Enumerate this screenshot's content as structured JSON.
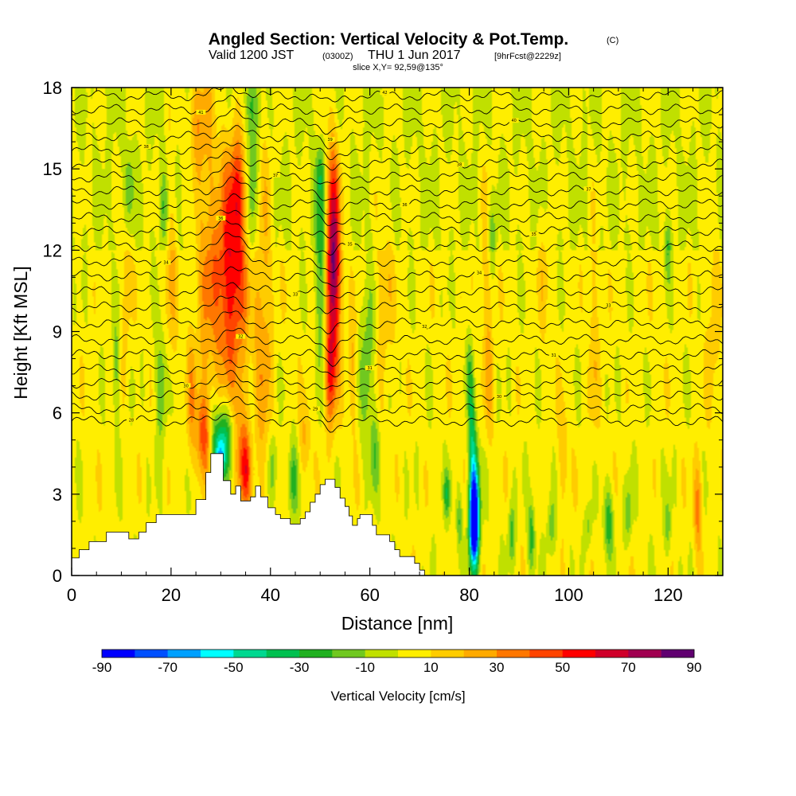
{
  "title": {
    "main": "Angled Section: Vertical Velocity & Pot.Temp.",
    "main_suffix": "(C)",
    "valid_prefix": "Valid 1200 JST",
    "valid_utc": "(0300Z)",
    "valid_date": "THU 1 Jun 2017",
    "forecast": "[9hrFcst@2229z]",
    "slice": "slice X,Y= 92,59@135°"
  },
  "chart_data": {
    "type": "heatmap",
    "xlabel": "Distance [nm]",
    "ylabel": "Height [Kft MSL]",
    "xlim": [
      0,
      131
    ],
    "ylim": [
      0,
      18
    ],
    "x_ticks": [
      "0",
      "20",
      "40",
      "60",
      "80",
      "100",
      "120"
    ],
    "y_ticks": [
      "0",
      "3",
      "6",
      "9",
      "12",
      "15",
      "18"
    ],
    "colorbar": {
      "label": "Vertical Velocity [cm/s]",
      "tick_labels": [
        "-90",
        "-70",
        "-50",
        "-30",
        "-10",
        "10",
        "30",
        "50",
        "70",
        "90"
      ],
      "levels": [
        -90,
        -80,
        -70,
        -60,
        -50,
        -40,
        -30,
        -20,
        -10,
        0,
        10,
        20,
        30,
        40,
        50,
        60,
        70,
        80,
        90
      ],
      "colors": [
        "#0000ff",
        "#0050ff",
        "#00a0ff",
        "#00ffff",
        "#00d890",
        "#00c050",
        "#20b020",
        "#70c820",
        "#c0e000",
        "#ffee00",
        "#ffcc00",
        "#ffaa00",
        "#ff7700",
        "#ff4400",
        "#ff0000",
        "#d0002a",
        "#a00050",
        "#600070"
      ]
    },
    "terrain": [
      [
        0,
        0.65
      ],
      [
        1.5,
        0.65
      ],
      [
        1.5,
        0.95
      ],
      [
        3.5,
        0.95
      ],
      [
        3.5,
        1.25
      ],
      [
        7,
        1.25
      ],
      [
        7,
        1.6
      ],
      [
        11.5,
        1.6
      ],
      [
        11.5,
        1.35
      ],
      [
        13.5,
        1.35
      ],
      [
        13.5,
        1.6
      ],
      [
        15,
        1.6
      ],
      [
        15,
        1.95
      ],
      [
        17,
        1.95
      ],
      [
        17,
        2.25
      ],
      [
        25,
        2.25
      ],
      [
        25,
        2.8
      ],
      [
        27,
        2.8
      ],
      [
        27,
        3.8
      ],
      [
        28,
        3.8
      ],
      [
        28,
        4.5
      ],
      [
        30.5,
        4.5
      ],
      [
        30.5,
        3.5
      ],
      [
        32,
        3.5
      ],
      [
        32,
        3.0
      ],
      [
        33,
        3.0
      ],
      [
        33,
        3.3
      ],
      [
        34,
        3.3
      ],
      [
        34,
        2.75
      ],
      [
        36,
        2.75
      ],
      [
        36,
        2.9
      ],
      [
        37,
        2.9
      ],
      [
        37,
        3.3
      ],
      [
        38,
        3.3
      ],
      [
        38,
        2.9
      ],
      [
        39.5,
        2.9
      ],
      [
        39.5,
        2.5
      ],
      [
        41,
        2.5
      ],
      [
        41,
        2.25
      ],
      [
        42,
        2.25
      ],
      [
        42,
        2.1
      ],
      [
        44,
        2.1
      ],
      [
        44,
        1.9
      ],
      [
        46,
        1.9
      ],
      [
        46,
        2.1
      ],
      [
        47,
        2.1
      ],
      [
        47,
        2.35
      ],
      [
        48,
        2.35
      ],
      [
        48,
        2.7
      ],
      [
        49,
        2.7
      ],
      [
        49,
        3.0
      ],
      [
        50,
        3.0
      ],
      [
        50,
        3.35
      ],
      [
        51,
        3.35
      ],
      [
        51,
        3.55
      ],
      [
        53,
        3.55
      ],
      [
        53,
        3.25
      ],
      [
        54,
        3.25
      ],
      [
        54,
        2.85
      ],
      [
        55,
        2.85
      ],
      [
        55,
        2.55
      ],
      [
        55.8,
        2.55
      ],
      [
        55.8,
        2.2
      ],
      [
        56.5,
        2.2
      ],
      [
        56.5,
        1.85
      ],
      [
        57.5,
        1.85
      ],
      [
        57.5,
        2.1
      ],
      [
        58,
        2.1
      ],
      [
        58,
        2.25
      ],
      [
        60.5,
        2.25
      ],
      [
        60.5,
        1.85
      ],
      [
        61.3,
        1.85
      ],
      [
        61.3,
        1.5
      ],
      [
        64,
        1.5
      ],
      [
        64,
        1.25
      ],
      [
        65,
        1.25
      ],
      [
        65,
        0.95
      ],
      [
        66,
        0.95
      ],
      [
        66,
        0.7
      ],
      [
        69,
        0.7
      ],
      [
        69,
        0.45
      ],
      [
        70,
        0.45
      ],
      [
        70,
        0.2
      ],
      [
        71,
        0.2
      ],
      [
        71,
        0
      ],
      [
        131,
        0
      ]
    ],
    "cells": [
      {
        "x": 52.5,
        "y": 11.5,
        "sx": 1.1,
        "sy": 2.8,
        "w": 85
      },
      {
        "x": 32,
        "y": 11.2,
        "sx": 2.4,
        "sy": 3.0,
        "w": 55
      },
      {
        "x": 33.5,
        "y": 14.3,
        "sx": 1.2,
        "sy": 1.5,
        "w": 28
      },
      {
        "x": 27,
        "y": 12.5,
        "sx": 1.5,
        "sy": 6.0,
        "w": 20
      },
      {
        "x": 25,
        "y": 16.8,
        "sx": 1.2,
        "sy": 1.2,
        "w": 22
      },
      {
        "x": 50.5,
        "y": 11.3,
        "sx": 0.9,
        "sy": 2.2,
        "w": -42
      },
      {
        "x": 50.0,
        "y": 14.8,
        "sx": 0.6,
        "sy": 0.8,
        "w": -22
      },
      {
        "x": 52.0,
        "y": 7.3,
        "sx": 0.7,
        "sy": 1.2,
        "w": 30
      },
      {
        "x": 38.5,
        "y": 9.5,
        "sx": 1.3,
        "sy": 5.0,
        "w": 22
      },
      {
        "x": 36.5,
        "y": 14.0,
        "sx": 0.9,
        "sy": 2.0,
        "w": -26
      },
      {
        "x": 36.0,
        "y": 17.4,
        "sx": 0.8,
        "sy": 1.0,
        "w": -25
      },
      {
        "x": 30.5,
        "y": 5.2,
        "sx": 2.0,
        "sy": 0.9,
        "w": -40
      },
      {
        "x": 29.8,
        "y": 4.3,
        "sx": 0.9,
        "sy": 0.6,
        "w": -48
      },
      {
        "x": 33.8,
        "y": 5.0,
        "sx": 1.0,
        "sy": 1.3,
        "w": 30
      },
      {
        "x": 35.0,
        "y": 3.8,
        "sx": 0.7,
        "sy": 1.0,
        "w": 40
      },
      {
        "x": 26.5,
        "y": 5.2,
        "sx": 1.0,
        "sy": 1.0,
        "w": 38
      },
      {
        "x": 24.0,
        "y": 6.5,
        "sx": 0.7,
        "sy": 1.6,
        "w": 20
      },
      {
        "x": 18.0,
        "y": 7.0,
        "sx": 0.8,
        "sy": 1.5,
        "w": -25
      },
      {
        "x": 20.0,
        "y": 11.5,
        "sx": 0.9,
        "sy": 3.0,
        "w": 16
      },
      {
        "x": 18.5,
        "y": 13.5,
        "sx": 0.6,
        "sy": 1.0,
        "w": -22
      },
      {
        "x": 11.0,
        "y": 10.5,
        "sx": 0.6,
        "sy": 2.0,
        "w": 14
      },
      {
        "x": 11.5,
        "y": 14.3,
        "sx": 0.6,
        "sy": 1.0,
        "w": -20
      },
      {
        "x": 9.0,
        "y": 7.5,
        "sx": 0.5,
        "sy": 1.5,
        "w": -18
      },
      {
        "x": 44.5,
        "y": 3.5,
        "sx": 0.7,
        "sy": 1.0,
        "w": -28
      },
      {
        "x": 40.5,
        "y": 4.0,
        "sx": 0.6,
        "sy": 1.0,
        "w": -22
      },
      {
        "x": 47.0,
        "y": 5.0,
        "sx": 0.8,
        "sy": 1.0,
        "w": 18
      },
      {
        "x": 56.5,
        "y": 7.5,
        "sx": 0.6,
        "sy": 1.5,
        "w": 18
      },
      {
        "x": 59.5,
        "y": 7.7,
        "sx": 1.0,
        "sy": 2.2,
        "w": -22
      },
      {
        "x": 61.0,
        "y": 4.5,
        "sx": 0.7,
        "sy": 1.0,
        "w": -18
      },
      {
        "x": 63.0,
        "y": 10.5,
        "sx": 1.2,
        "sy": 2.5,
        "w": 14
      },
      {
        "x": 81.0,
        "y": 1.8,
        "sx": 0.7,
        "sy": 1.1,
        "w": -88
      },
      {
        "x": 81.0,
        "y": 3.0,
        "sx": 0.7,
        "sy": 1.5,
        "w": -55
      },
      {
        "x": 80.5,
        "y": 5.5,
        "sx": 0.5,
        "sy": 1.5,
        "w": -25
      },
      {
        "x": 80.0,
        "y": 7.5,
        "sx": 0.5,
        "sy": 1.0,
        "w": -15
      },
      {
        "x": 84.0,
        "y": 7.0,
        "sx": 0.6,
        "sy": 1.5,
        "w": 13
      },
      {
        "x": 83.5,
        "y": 11.0,
        "sx": 0.9,
        "sy": 3.0,
        "w": 14
      },
      {
        "x": 84.5,
        "y": 12.5,
        "sx": 0.6,
        "sy": 1.0,
        "w": -20
      },
      {
        "x": 75.5,
        "y": 3.0,
        "sx": 0.5,
        "sy": 0.6,
        "w": -28
      },
      {
        "x": 78.0,
        "y": 2.0,
        "sx": 0.4,
        "sy": 0.7,
        "w": -22
      },
      {
        "x": 88.5,
        "y": 1.5,
        "sx": 0.5,
        "sy": 0.8,
        "w": -28
      },
      {
        "x": 92.5,
        "y": 1.5,
        "sx": 0.5,
        "sy": 0.9,
        "w": -30
      },
      {
        "x": 96.5,
        "y": 1.8,
        "sx": 0.6,
        "sy": 0.8,
        "w": -20
      },
      {
        "x": 108.0,
        "y": 2.0,
        "sx": 0.7,
        "sy": 0.9,
        "w": -30
      },
      {
        "x": 112.0,
        "y": 2.2,
        "sx": 0.5,
        "sy": 0.8,
        "w": -22
      },
      {
        "x": 104.0,
        "y": 1.8,
        "sx": 0.5,
        "sy": 0.6,
        "w": -18
      },
      {
        "x": 120.0,
        "y": 1.8,
        "sx": 0.5,
        "sy": 0.8,
        "w": -20
      },
      {
        "x": 126.0,
        "y": 2.5,
        "sx": 0.6,
        "sy": 1.2,
        "w": 30
      },
      {
        "x": 99.0,
        "y": 4.5,
        "sx": 0.8,
        "sy": 1.5,
        "w": 14
      },
      {
        "x": 105.0,
        "y": 9.0,
        "sx": 0.8,
        "sy": 3.0,
        "w": 13
      },
      {
        "x": 120.0,
        "y": 12.0,
        "sx": 0.5,
        "sy": 0.8,
        "w": -20
      },
      {
        "x": 129.0,
        "y": 9.5,
        "sx": 1.0,
        "sy": 2.5,
        "w": 12
      },
      {
        "x": 95.0,
        "y": 11.5,
        "sx": 0.7,
        "sy": 2.0,
        "w": 11
      }
    ],
    "isentropes": [
      {
        "y0": 5.7,
        "label": "28"
      },
      {
        "y0": 6.15,
        "label": "29"
      },
      {
        "y0": 6.65,
        "label": "30"
      },
      {
        "y0": 7.1,
        "label": "30"
      },
      {
        "y0": 7.6,
        "label": "31"
      },
      {
        "y0": 8.15,
        "label": "31"
      },
      {
        "y0": 8.7,
        "label": "32"
      },
      {
        "y0": 9.3,
        "label": "32"
      },
      {
        "y0": 9.9,
        "label": "33"
      },
      {
        "y0": 10.5,
        "label": "33"
      },
      {
        "y0": 11.05,
        "label": "34"
      },
      {
        "y0": 11.6,
        "label": "34"
      },
      {
        "y0": 12.15,
        "label": "35"
      },
      {
        "y0": 12.7,
        "label": "35"
      },
      {
        "y0": 13.2,
        "label": "36"
      },
      {
        "y0": 13.7,
        "label": "36"
      },
      {
        "y0": 14.2,
        "label": "37"
      },
      {
        "y0": 14.7,
        "label": "37"
      },
      {
        "y0": 15.2,
        "label": "38"
      },
      {
        "y0": 15.7,
        "label": "38"
      },
      {
        "y0": 16.2,
        "label": "39"
      },
      {
        "y0": 16.7,
        "label": "40"
      },
      {
        "y0": 17.2,
        "label": "41"
      },
      {
        "y0": 17.7,
        "label": "42"
      }
    ]
  }
}
